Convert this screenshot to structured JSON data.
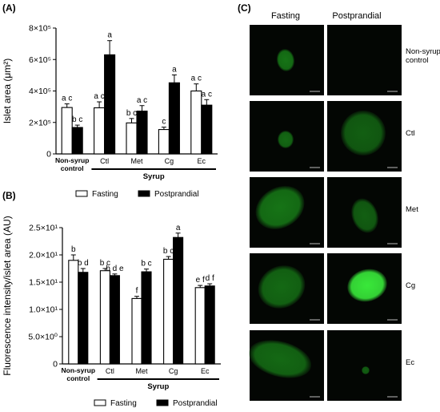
{
  "chart_data": [
    {
      "panel": "(A)",
      "type": "bar",
      "ylabel": "Islet area (μm²)",
      "ylim": [
        0,
        800000
      ],
      "yticks": [
        0,
        200000,
        400000,
        600000,
        800000
      ],
      "ytick_labels": [
        "0",
        "2×10⁵",
        "4×10⁵",
        "6×10⁵",
        "8×10⁵"
      ],
      "categories": [
        "Non-syrup control",
        "Ctl",
        "Met",
        "Cg",
        "Ec"
      ],
      "group_label": "Syrup",
      "series": [
        {
          "name": "Fasting",
          "values": [
            295000,
            293000,
            197000,
            155000,
            400000
          ],
          "errors": [
            23000,
            38000,
            28000,
            15000,
            45000
          ],
          "letters": [
            "a c",
            "a c",
            "b c",
            "c",
            "a c"
          ]
        },
        {
          "name": "Postprandial",
          "values": [
            168000,
            630000,
            272000,
            452000,
            310000
          ],
          "errors": [
            15000,
            90000,
            35000,
            50000,
            35000
          ],
          "letters": [
            "b c",
            "a",
            "a c",
            "a",
            "a c"
          ]
        }
      ],
      "legend": [
        "Fasting",
        "Postprandial"
      ],
      "legend_position": "bottom"
    },
    {
      "panel": "(B)",
      "type": "bar",
      "ylabel": "Fluorescence intensity/islet area (AU)",
      "ylim": [
        0,
        25
      ],
      "yticks": [
        0,
        5,
        10,
        15,
        20,
        25
      ],
      "ytick_labels": [
        "0",
        "5.0×10⁰",
        "1.0×10¹",
        "1.5×10¹",
        "2.0×10¹",
        "2.5×10¹"
      ],
      "categories": [
        "Non-syrup control",
        "Ctl",
        "Met",
        "Cg",
        "Ec"
      ],
      "group_label": "Syrup",
      "series": [
        {
          "name": "Fasting",
          "values": [
            19.0,
            17.1,
            12.0,
            19.2,
            14.0
          ],
          "errors": [
            1.0,
            0.4,
            0.4,
            0.5,
            0.4
          ],
          "letters": [
            "b",
            "b c",
            "f",
            "b c",
            "e f"
          ]
        },
        {
          "name": "Postprandial",
          "values": [
            16.8,
            16.2,
            16.9,
            23.2,
            14.3
          ],
          "errors": [
            0.7,
            0.3,
            0.5,
            0.8,
            0.4
          ],
          "letters": [
            "b d",
            "b d e",
            "b c",
            "a",
            "d f"
          ]
        }
      ],
      "legend": [
        "Fasting",
        "Postprandial"
      ],
      "legend_position": "bottom"
    }
  ],
  "panel_c": {
    "label": "(C)",
    "columns": [
      "Fasting",
      "Postprandial"
    ],
    "rows": [
      "Non-syrup control",
      "Ctl",
      "Met",
      "Cg",
      "Ec"
    ]
  }
}
